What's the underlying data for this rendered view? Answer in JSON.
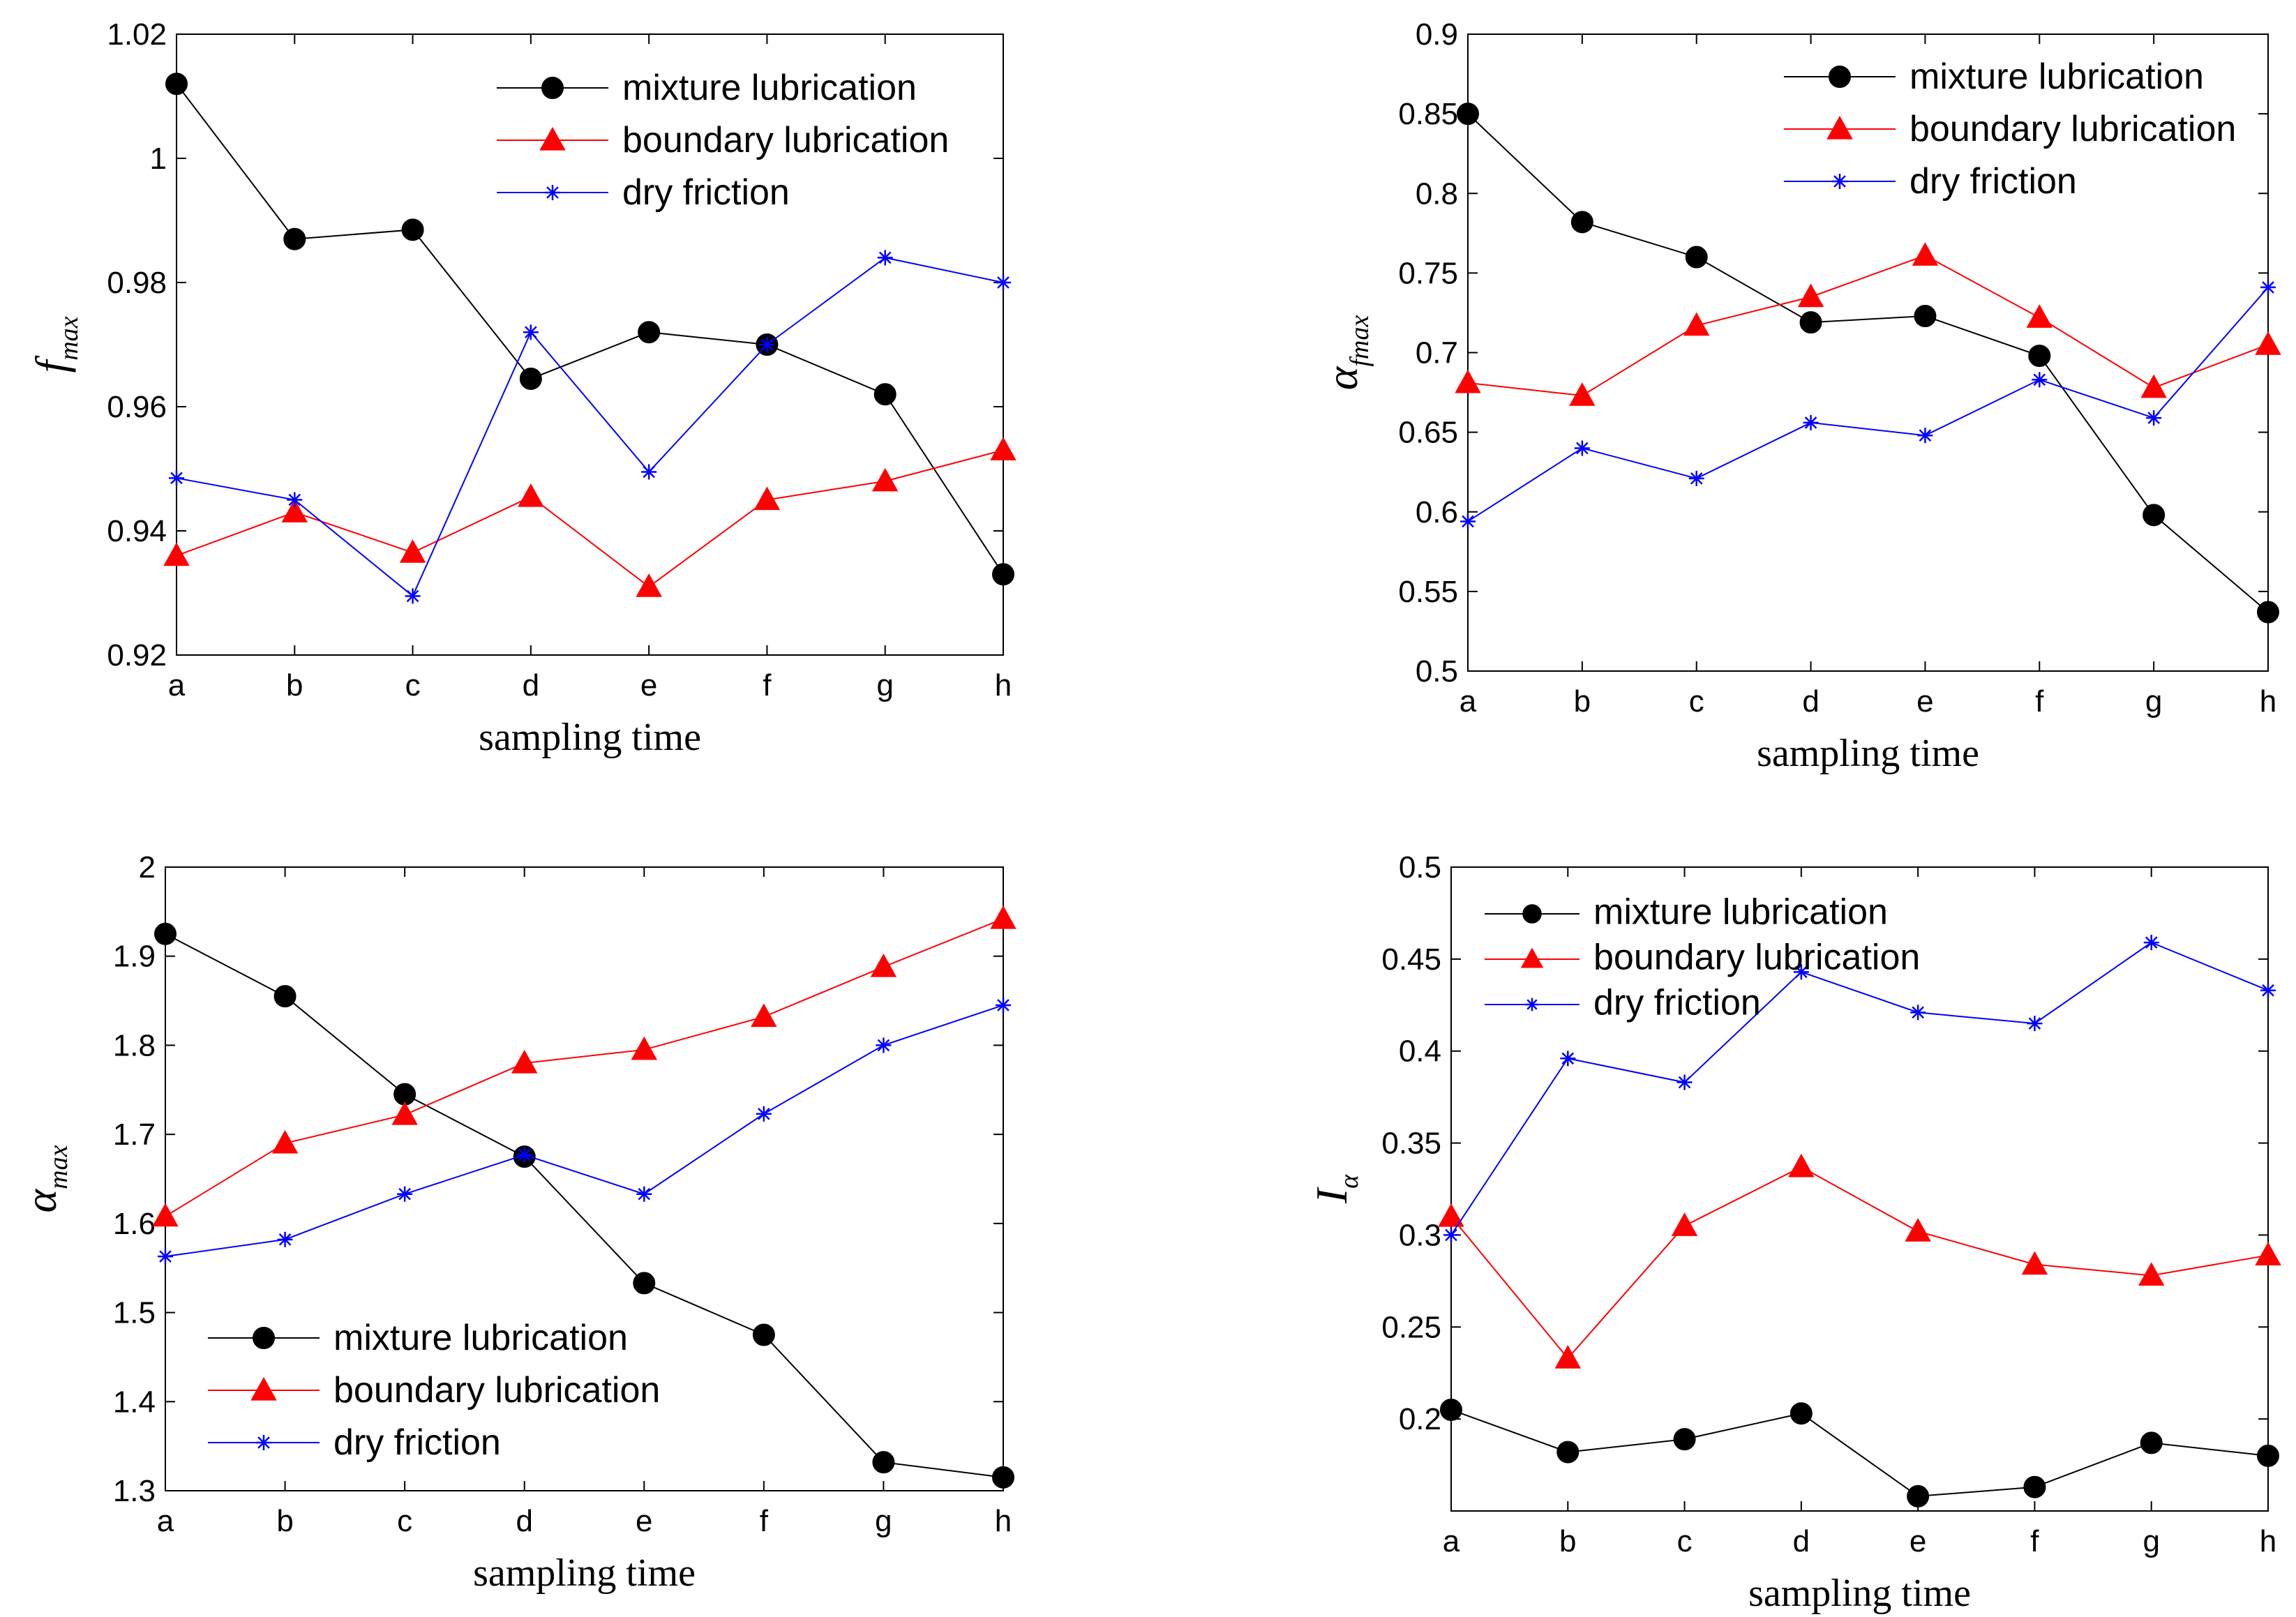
{
  "colors": {
    "mixture": "#000000",
    "boundary": "#ff0000",
    "dry": "#0000ff"
  },
  "chart_data": [
    {
      "type": "line",
      "title": "",
      "xlabel": "sampling time",
      "ylabel_main": "f",
      "ylabel_sub": "max",
      "categories": [
        "a",
        "b",
        "c",
        "d",
        "e",
        "f",
        "g",
        "h"
      ],
      "ylim": [
        0.92,
        1.02
      ],
      "yticks": [
        0.92,
        0.94,
        0.96,
        0.98,
        1,
        1.02
      ],
      "ytick_labels": [
        "0.92",
        "0.94",
        "0.96",
        "0.98",
        "1",
        "1.02"
      ],
      "legend_position": "top-right",
      "series": [
        {
          "name": "mixture lubrication",
          "marker": "circle",
          "values": [
            1.012,
            0.987,
            0.9885,
            0.9645,
            0.972,
            0.97,
            0.962,
            0.933
          ]
        },
        {
          "name": "boundary lubrication",
          "marker": "triangle",
          "values": [
            0.936,
            0.943,
            0.9365,
            0.9455,
            0.931,
            0.945,
            0.948,
            0.953
          ]
        },
        {
          "name": "dry friction",
          "marker": "star",
          "values": [
            0.9485,
            0.945,
            0.9295,
            0.972,
            0.9495,
            0.97,
            0.984,
            0.98
          ]
        }
      ]
    },
    {
      "type": "line",
      "title": "",
      "xlabel": "sampling time",
      "ylabel_main": "α",
      "ylabel_sub": "fmax",
      "categories": [
        "a",
        "b",
        "c",
        "d",
        "e",
        "f",
        "g",
        "h"
      ],
      "ylim": [
        0.5,
        0.9
      ],
      "yticks": [
        0.5,
        0.55,
        0.6,
        0.65,
        0.7,
        0.75,
        0.8,
        0.85,
        0.9
      ],
      "ytick_labels": [
        "0.5",
        "0.55",
        "0.6",
        "0.65",
        "0.7",
        "0.75",
        "0.8",
        "0.85",
        "0.9"
      ],
      "legend_position": "top-right",
      "series": [
        {
          "name": "mixture lubrication",
          "marker": "circle",
          "values": [
            0.85,
            0.782,
            0.76,
            0.719,
            0.723,
            0.698,
            0.598,
            0.537
          ]
        },
        {
          "name": "boundary lubrication",
          "marker": "triangle",
          "values": [
            0.681,
            0.673,
            0.717,
            0.735,
            0.761,
            0.722,
            0.678,
            0.705
          ]
        },
        {
          "name": "dry friction",
          "marker": "star",
          "values": [
            0.594,
            0.64,
            0.621,
            0.656,
            0.648,
            0.683,
            0.659,
            0.741
          ]
        }
      ]
    },
    {
      "type": "line",
      "title": "",
      "xlabel": "sampling time",
      "ylabel_main": "α",
      "ylabel_sub": "max",
      "categories": [
        "a",
        "b",
        "c",
        "d",
        "e",
        "f",
        "g",
        "h"
      ],
      "ylim": [
        1.3,
        2.0
      ],
      "yticks": [
        1.3,
        1.4,
        1.5,
        1.6,
        1.7,
        1.8,
        1.9,
        2.0
      ],
      "ytick_labels": [
        "1.3",
        "1.4",
        "1.5",
        "1.6",
        "1.7",
        "1.8",
        "1.9",
        "2"
      ],
      "legend_position": "bottom-left",
      "series": [
        {
          "name": "mixture lubrication",
          "marker": "circle",
          "values": [
            1.925,
            1.855,
            1.745,
            1.675,
            1.533,
            1.475,
            1.332,
            1.315
          ]
        },
        {
          "name": "boundary lubrication",
          "marker": "triangle",
          "values": [
            1.608,
            1.69,
            1.722,
            1.78,
            1.795,
            1.832,
            1.888,
            1.942
          ]
        },
        {
          "name": "dry friction",
          "marker": "star",
          "values": [
            1.563,
            1.582,
            1.633,
            1.677,
            1.633,
            1.723,
            1.8,
            1.845
          ]
        }
      ]
    },
    {
      "type": "line",
      "title": "",
      "xlabel": "sampling time",
      "ylabel_main": "I",
      "ylabel_sub": "α",
      "categories": [
        "a",
        "b",
        "c",
        "d",
        "e",
        "f",
        "g",
        "h"
      ],
      "ylim": [
        0.15,
        0.5
      ],
      "yticks": [
        0.2,
        0.25,
        0.3,
        0.35,
        0.4,
        0.45,
        0.5
      ],
      "ytick_labels": [
        "0.2",
        "0.25",
        "0.3",
        "0.35",
        "0.4",
        "0.45",
        "0.5"
      ],
      "legend_position": "top-left",
      "series": [
        {
          "name": "mixture lubrication",
          "marker": "circle",
          "values": [
            0.205,
            0.182,
            0.189,
            0.203,
            0.158,
            0.163,
            0.187,
            0.18
          ]
        },
        {
          "name": "boundary lubrication",
          "marker": "triangle",
          "values": [
            0.31,
            0.233,
            0.305,
            0.337,
            0.302,
            0.284,
            0.278,
            0.289
          ]
        },
        {
          "name": "dry friction",
          "marker": "star",
          "values": [
            0.3,
            0.396,
            0.383,
            0.443,
            0.421,
            0.415,
            0.459,
            0.433
          ]
        }
      ]
    }
  ]
}
